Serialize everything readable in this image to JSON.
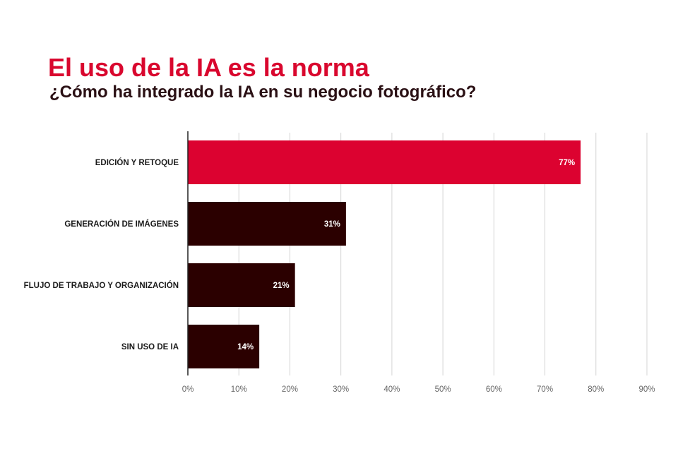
{
  "chart_data": {
    "type": "bar",
    "orientation": "horizontal",
    "title": "El uso de la IA es la norma",
    "subtitle": "¿Cómo ha integrado la IA en su negocio fotográfico?",
    "categories": [
      "EDICIÓN Y RETOQUE",
      "GENERACIÓN DE IMÁGENES",
      "FLUJO DE TRABAJO Y ORGANIZACIÓN",
      "SIN USO DE IA"
    ],
    "values": [
      77,
      31,
      21,
      14
    ],
    "data_labels": [
      "77%",
      "31%",
      "21%",
      "14%"
    ],
    "bar_colors": [
      "#dc0230",
      "#2b0000",
      "#2b0000",
      "#2b0000"
    ],
    "xlim": [
      0,
      90
    ],
    "xticks": [
      0,
      10,
      20,
      30,
      40,
      50,
      60,
      70,
      80,
      90
    ],
    "xtick_labels": [
      "0%",
      "10%",
      "20%",
      "30%",
      "40%",
      "50%",
      "60%",
      "70%",
      "80%",
      "90%"
    ],
    "xlabel": "",
    "ylabel": "",
    "grid": "vertical",
    "legend": "none"
  },
  "colors": {
    "title": "#d9072e",
    "subtitle": "#2a1014",
    "grid": "#d4d4d4",
    "axis": "#222222",
    "tick_text": "#666666"
  }
}
